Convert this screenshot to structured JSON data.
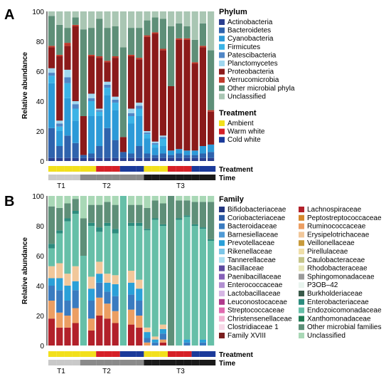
{
  "panels": [
    {
      "letter": "A",
      "ylabel": "Relative abundance",
      "yticks": [
        "0",
        "20",
        "40",
        "60",
        "80",
        "100"
      ],
      "legend_title": "Phylum",
      "legend": [
        {
          "name": "Actinobacteria",
          "color": "#2b3f8f"
        },
        {
          "name": "Bacteroidetes",
          "color": "#2f63ad"
        },
        {
          "name": "Cyanobacteria",
          "color": "#2c9ad8"
        },
        {
          "name": "Firmicutes",
          "color": "#3bb3e6"
        },
        {
          "name": "Patescibacteria",
          "color": "#4f86c6"
        },
        {
          "name": "Planctomycetes",
          "color": "#9fd7ef"
        },
        {
          "name": "Proteobacteria",
          "color": "#8b1a1a"
        },
        {
          "name": "Verrucomicrobia",
          "color": "#c0392b"
        },
        {
          "name": "Other microbial phyla",
          "color": "#5e8f78"
        },
        {
          "name": "Unclassified",
          "color": "#a9c6b3"
        }
      ],
      "treatment_title": "Treatment",
      "treatment_legend": [
        {
          "name": "Ambient",
          "color": "#f2e01c"
        },
        {
          "name": "Warm white",
          "color": "#d62027"
        },
        {
          "name": "Cold white",
          "color": "#1b3a9a"
        }
      ],
      "row_labels": {
        "treatment": "Treatment",
        "time": "Time"
      },
      "groups": [
        "T1",
        "T2",
        "T3"
      ]
    },
    {
      "letter": "B",
      "ylabel": "Relative abundance",
      "yticks": [
        "0",
        "20",
        "40",
        "60",
        "80",
        "100"
      ],
      "legend_title": "Family",
      "legend_col1": [
        {
          "name": "Bifidobacteriaceae",
          "color": "#22357f"
        },
        {
          "name": "Coriobacteriaceae",
          "color": "#2a5aa5"
        },
        {
          "name": "Bacteroidaceae",
          "color": "#3a7bc0"
        },
        {
          "name": "Barnesiellaceae",
          "color": "#4f9ad6"
        },
        {
          "name": "Prevotellaceae",
          "color": "#2aa0d8"
        },
        {
          "name": "Rikenellaceae",
          "color": "#7cc6e8"
        },
        {
          "name": "Tannerellaceae",
          "color": "#aedff2"
        },
        {
          "name": "Bacillaceae",
          "color": "#5d4aa0"
        },
        {
          "name": "Paenibacillaceae",
          "color": "#8660b8"
        },
        {
          "name": "Enterococcaceae",
          "color": "#b18fd1"
        },
        {
          "name": "Lactobacillaceae",
          "color": "#d6b6e4"
        },
        {
          "name": "Leuconostocaceae",
          "color": "#b03a8c"
        },
        {
          "name": "Streptococcaceae",
          "color": "#e06bb0"
        },
        {
          "name": "Christensenellaceae",
          "color": "#f3b2d3"
        },
        {
          "name": "Clostridiaceae 1",
          "color": "#f8d9e8"
        },
        {
          "name": "Family XVIII",
          "color": "#7a1f1f"
        }
      ],
      "legend_col2": [
        {
          "name": "Lachnospiraceae",
          "color": "#b2202a"
        },
        {
          "name": "Peptostreptococcaceae",
          "color": "#d5892c"
        },
        {
          "name": "Ruminococcaceae",
          "color": "#ec9e62"
        },
        {
          "name": "Erysipelotrichaceae",
          "color": "#f1c79a"
        },
        {
          "name": "Veillonellaceae",
          "color": "#c89b3c"
        },
        {
          "name": "Pirellulaceae",
          "color": "#f0dfa8"
        },
        {
          "name": "Caulobacteraceae",
          "color": "#c4c488"
        },
        {
          "name": "Rhodobacteraceae",
          "color": "#e6e6b8"
        },
        {
          "name": "Sphingomonadaceae",
          "color": "#9a9a9a"
        },
        {
          "name": "P3OB–42",
          "color": "#e8f4ee"
        },
        {
          "name": "Burkholderiaceae",
          "color": "#3a5a4a"
        },
        {
          "name": "Enterobacteriaceae",
          "color": "#2d8c7e"
        },
        {
          "name": "Endozoicomonadaceae",
          "color": "#66bfa8"
        },
        {
          "name": "Xanthomonadaceae",
          "color": "#1f7a52"
        },
        {
          "name": "Other microbial families",
          "color": "#5e8f78"
        },
        {
          "name": "Unclassified",
          "color": "#a9d8b6"
        }
      ],
      "row_labels": {
        "treatment": "Treatment",
        "time": "Time"
      },
      "groups": [
        "T1",
        "T2",
        "T3"
      ]
    }
  ],
  "chart_data": [
    {
      "type": "bar",
      "stacked": true,
      "panel": "A",
      "ylabel": "Relative abundance",
      "ylim": [
        0,
        100
      ],
      "treatment": [
        "Ambient",
        "Ambient",
        "Ambient",
        "Ambient",
        "Ambient",
        "Ambient",
        "Warm white",
        "Warm white",
        "Warm white",
        "Cold white",
        "Cold white",
        "Cold white",
        "Ambient",
        "Ambient",
        "Ambient",
        "Warm white",
        "Warm white",
        "Warm white",
        "Cold white",
        "Cold white",
        "Cold white"
      ],
      "time": [
        "T1",
        "T1",
        "T1",
        "T1",
        "T2",
        "T2",
        "T2",
        "T2",
        "T2",
        "T2",
        "T2",
        "T2",
        "T3",
        "T3",
        "T3",
        "T3",
        "T3",
        "T3",
        "T3",
        "T3",
        "T3"
      ],
      "series": [
        {
          "name": "Actinobacteria",
          "values": [
            2,
            2,
            2,
            2,
            2,
            2,
            2,
            2,
            2,
            2,
            2,
            2,
            2,
            2,
            2,
            2,
            2,
            2,
            2,
            2,
            2
          ]
        },
        {
          "name": "Bacteroidetes",
          "values": [
            20,
            8,
            15,
            10,
            2,
            3,
            8,
            20,
            12,
            4,
            3,
            8,
            3,
            2,
            3,
            2,
            3,
            2,
            2,
            3,
            4
          ]
        },
        {
          "name": "Cyanobacteria",
          "values": [
            30,
            10,
            25,
            15,
            0,
            25,
            20,
            22,
            20,
            0,
            20,
            20,
            10,
            5,
            5,
            3,
            3,
            3,
            3,
            5,
            5
          ]
        },
        {
          "name": "Firmicutes",
          "values": [
            5,
            3,
            10,
            8,
            0,
            10,
            3,
            5,
            5,
            0,
            5,
            5,
            3,
            2,
            5,
            0,
            0,
            0,
            0,
            0,
            0
          ]
        },
        {
          "name": "Patescibacteria",
          "values": [
            2,
            2,
            4,
            3,
            0,
            2,
            1,
            2,
            2,
            0,
            2,
            2,
            1,
            1,
            1,
            0,
            0,
            0,
            0,
            0,
            0
          ]
        },
        {
          "name": "Planctomycetes",
          "values": [
            3,
            2,
            5,
            2,
            0,
            3,
            1,
            2,
            2,
            0,
            3,
            2,
            1,
            1,
            1,
            0,
            0,
            0,
            0,
            0,
            0
          ]
        },
        {
          "name": "Proteobacteria",
          "values": [
            14,
            43,
            16,
            50,
            26,
            25,
            34,
            13,
            26,
            10,
            35,
            29,
            63,
            72,
            57,
            43,
            73,
            74,
            58,
            66,
            22
          ]
        },
        {
          "name": "Verrucomicrobia",
          "values": [
            1,
            1,
            2,
            1,
            0,
            1,
            1,
            1,
            1,
            0,
            1,
            1,
            1,
            1,
            1,
            0,
            1,
            1,
            1,
            1,
            1
          ]
        },
        {
          "name": "Other microbial phyla",
          "values": [
            20,
            20,
            10,
            5,
            58,
            18,
            25,
            22,
            20,
            60,
            18,
            20,
            10,
            10,
            20,
            40,
            10,
            8,
            15,
            15,
            40
          ]
        },
        {
          "name": "Unclassified",
          "values": [
            3,
            9,
            11,
            4,
            12,
            11,
            5,
            11,
            10,
            24,
            11,
            11,
            6,
            4,
            5,
            10,
            8,
            10,
            19,
            8,
            26
          ]
        }
      ]
    },
    {
      "type": "bar",
      "stacked": true,
      "panel": "B",
      "ylabel": "Relative abundance",
      "ylim": [
        0,
        100
      ],
      "treatment": [
        "Ambient",
        "Ambient",
        "Ambient",
        "Ambient",
        "Ambient",
        "Ambient",
        "Warm white",
        "Warm white",
        "Warm white",
        "Cold white",
        "Cold white",
        "Cold white",
        "Ambient",
        "Ambient",
        "Ambient",
        "Warm white",
        "Warm white",
        "Warm white",
        "Cold white",
        "Cold white",
        "Cold white"
      ],
      "time": [
        "T1",
        "T1",
        "T1",
        "T1",
        "T2",
        "T2",
        "T2",
        "T2",
        "T2",
        "T2",
        "T2",
        "T2",
        "T3",
        "T3",
        "T3",
        "T3",
        "T3",
        "T3",
        "T3",
        "T3",
        "T3"
      ],
      "series": [
        {
          "name": "Lachnospiraceae",
          "values": [
            18,
            12,
            12,
            15,
            0,
            10,
            20,
            18,
            15,
            0,
            14,
            12,
            0,
            0,
            2,
            0,
            0,
            0,
            0,
            0,
            0
          ]
        },
        {
          "name": "Ruminococcaceae",
          "values": [
            12,
            10,
            8,
            10,
            0,
            8,
            12,
            10,
            8,
            0,
            10,
            8,
            2,
            0,
            2,
            0,
            0,
            0,
            0,
            0,
            0
          ]
        },
        {
          "name": "Bacteroidaceae",
          "values": [
            10,
            15,
            10,
            12,
            0,
            12,
            10,
            8,
            10,
            0,
            10,
            10,
            3,
            2,
            4,
            0,
            0,
            2,
            0,
            2,
            0
          ]
        },
        {
          "name": "Prevotellaceae",
          "values": [
            5,
            8,
            10,
            6,
            0,
            8,
            6,
            6,
            8,
            0,
            8,
            8,
            4,
            2,
            3,
            0,
            0,
            2,
            0,
            2,
            0
          ]
        },
        {
          "name": "Erysipelotrichaceae",
          "values": [
            8,
            10,
            8,
            10,
            0,
            8,
            8,
            6,
            6,
            0,
            8,
            6,
            3,
            2,
            3,
            0,
            0,
            0,
            0,
            0,
            0
          ]
        },
        {
          "name": "Endozoicomonadaceae",
          "values": [
            12,
            20,
            35,
            35,
            60,
            34,
            20,
            32,
            28,
            100,
            30,
            36,
            65,
            78,
            66,
            0,
            84,
            82,
            80,
            74,
            70
          ]
        },
        {
          "name": "Enterobacteriaceae",
          "values": [
            3,
            2,
            2,
            2,
            0,
            2,
            3,
            2,
            3,
            0,
            2,
            2,
            1,
            1,
            1,
            0,
            1,
            1,
            1,
            1,
            1
          ]
        },
        {
          "name": "Other microbial families",
          "values": [
            25,
            15,
            10,
            8,
            25,
            12,
            15,
            14,
            16,
            0,
            12,
            12,
            14,
            12,
            14,
            100,
            12,
            10,
            15,
            17,
            25
          ]
        },
        {
          "name": "Unclassified",
          "values": [
            7,
            8,
            5,
            2,
            15,
            6,
            6,
            4,
            6,
            0,
            6,
            6,
            8,
            3,
            5,
            0,
            3,
            3,
            4,
            4,
            4
          ]
        }
      ]
    }
  ]
}
